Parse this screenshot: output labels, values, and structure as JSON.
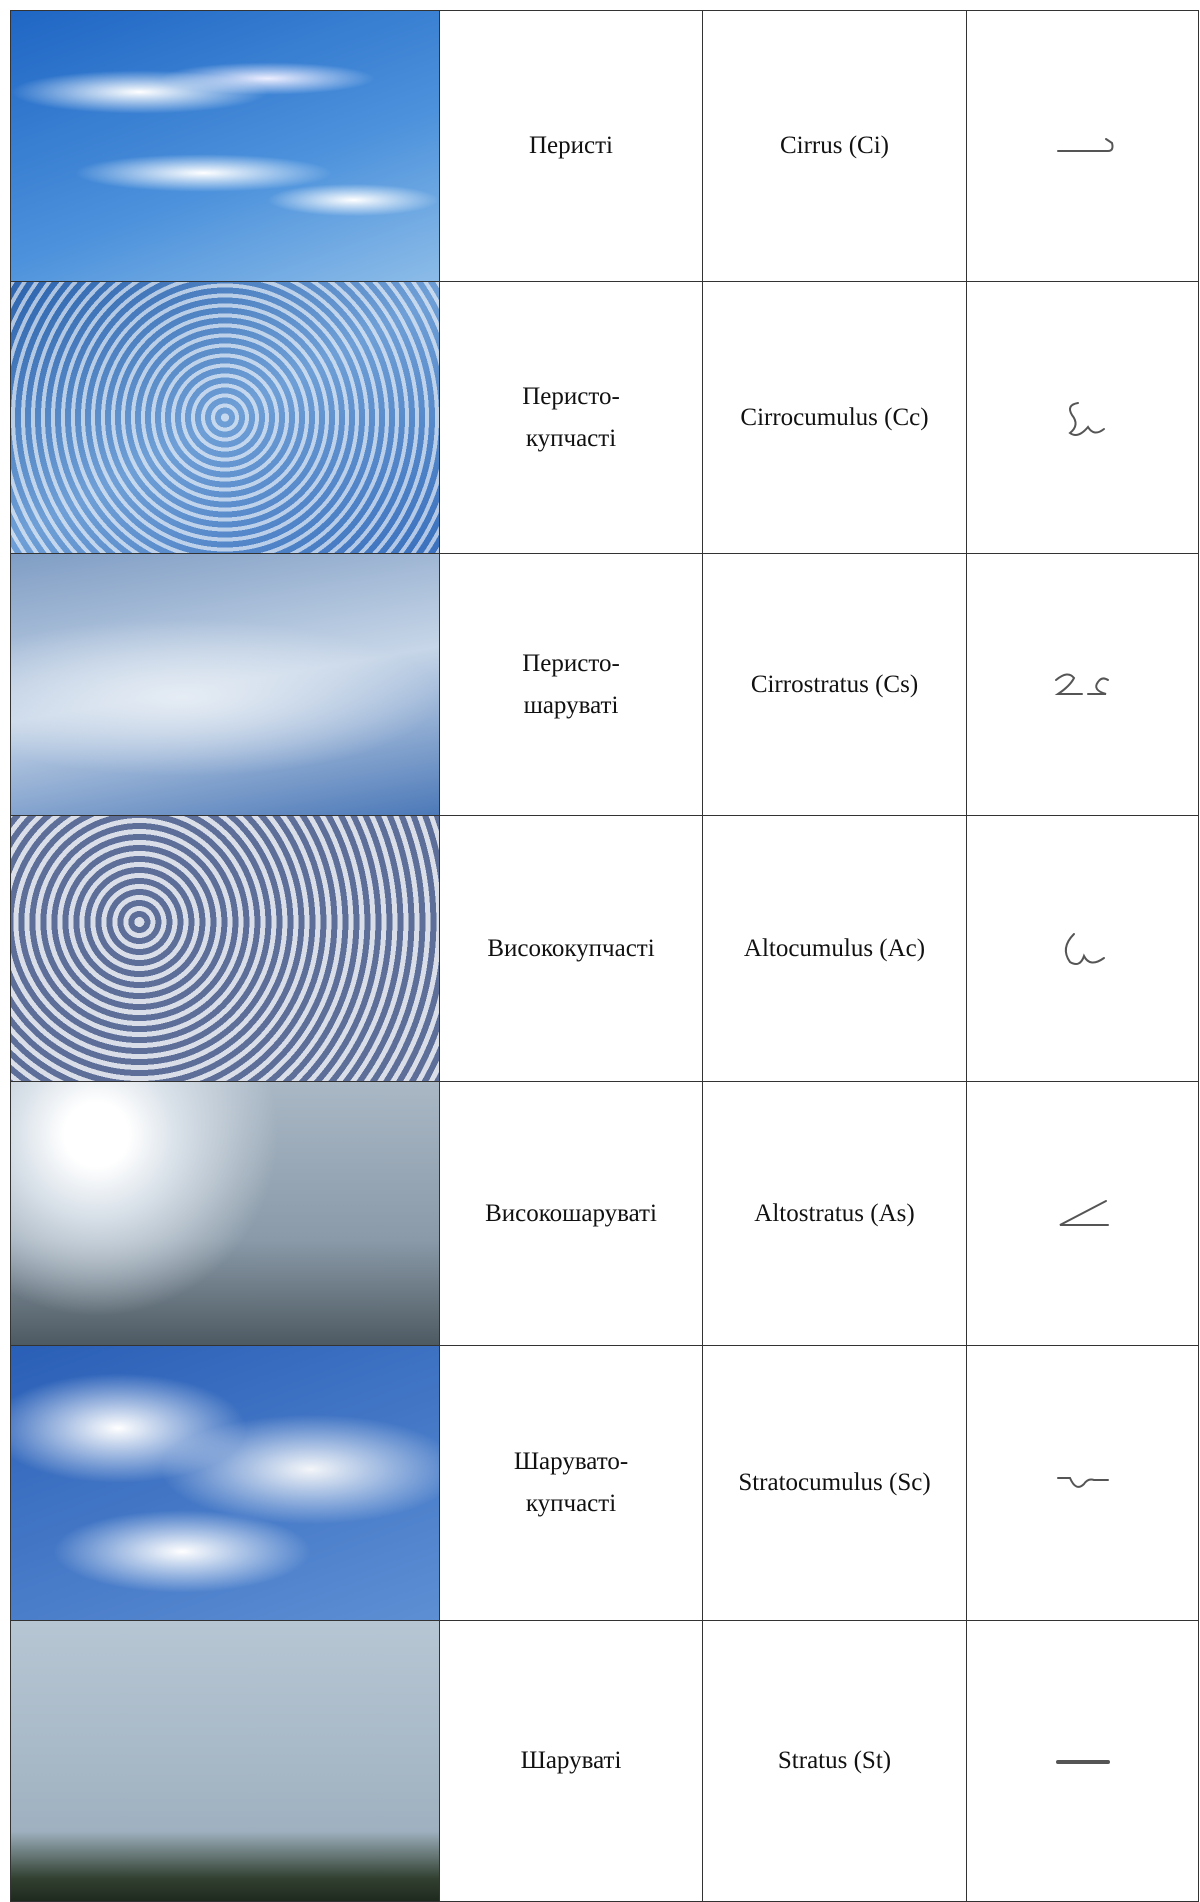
{
  "table": {
    "rows": [
      [
        [
          "Перисті"
        ],
        "Cirrus (Ci)"
      ],
      [
        [
          "Перисто-",
          "купчасті"
        ],
        "Cirrocumulus (Cc)"
      ],
      [
        [
          "Перисто-",
          "шаруваті"
        ],
        "Cirrostratus (Cs)"
      ],
      [
        [
          "Висококупчасті"
        ],
        "Altocumulus (Ac)"
      ],
      [
        [
          "Високошаруваті"
        ],
        "Altostratus (As)"
      ],
      [
        [
          "Шарувато-",
          "купчасті"
        ],
        "Stratocumulus (Sc)"
      ],
      [
        [
          "Шаруваті"
        ],
        "Stratus (St)"
      ]
    ]
  }
}
